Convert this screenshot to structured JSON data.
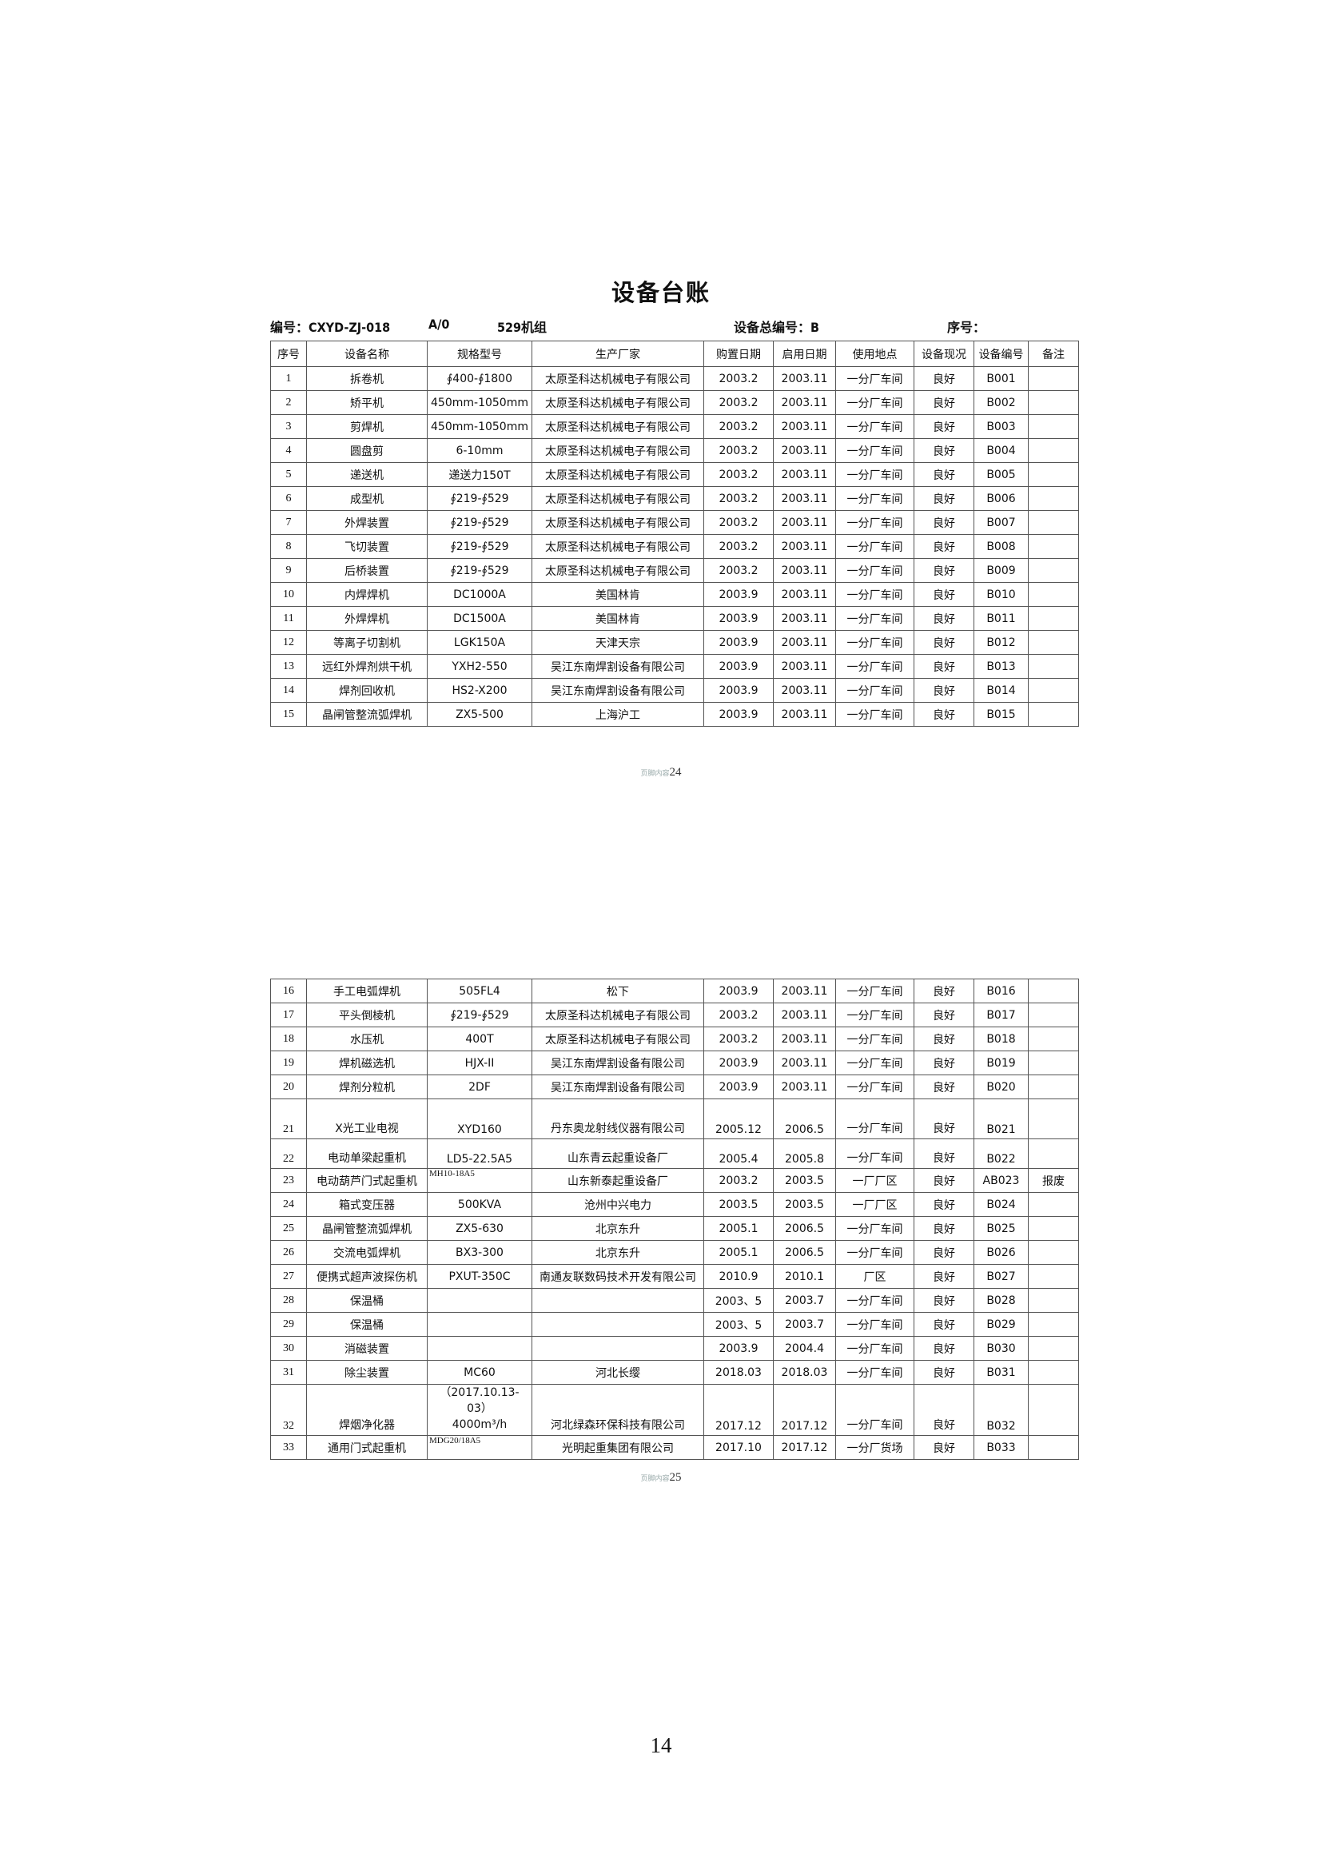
{
  "title": "设备台账",
  "meta": {
    "code": "编号：CXYD-ZJ-018",
    "rev": "A/0",
    "unit": "529机组",
    "total_code": "设备总编号：B",
    "serial": "序号："
  },
  "headers": [
    "序号",
    "设备名称",
    "规格型号",
    "生产厂家",
    "购置日期",
    "启用日期",
    "使用地点",
    "设备现况",
    "设备编号",
    "备注"
  ],
  "table1": [
    [
      "1",
      "拆卷机",
      "∮400-∮1800",
      "太原圣科达机械电子有限公司",
      "2003.2",
      "2003.11",
      "一分厂车间",
      "良好",
      "B001",
      ""
    ],
    [
      "2",
      "矫平机",
      "450mm-1050mm",
      "太原圣科达机械电子有限公司",
      "2003.2",
      "2003.11",
      "一分厂车间",
      "良好",
      "B002",
      ""
    ],
    [
      "3",
      "剪焊机",
      "450mm-1050mm",
      "太原圣科达机械电子有限公司",
      "2003.2",
      "2003.11",
      "一分厂车间",
      "良好",
      "B003",
      ""
    ],
    [
      "4",
      "圆盘剪",
      "6-10mm",
      "太原圣科达机械电子有限公司",
      "2003.2",
      "2003.11",
      "一分厂车间",
      "良好",
      "B004",
      ""
    ],
    [
      "5",
      "递送机",
      "递送力150T",
      "太原圣科达机械电子有限公司",
      "2003.2",
      "2003.11",
      "一分厂车间",
      "良好",
      "B005",
      ""
    ],
    [
      "6",
      "成型机",
      "∮219-∮529",
      "太原圣科达机械电子有限公司",
      "2003.2",
      "2003.11",
      "一分厂车间",
      "良好",
      "B006",
      ""
    ],
    [
      "7",
      "外焊装置",
      "∮219-∮529",
      "太原圣科达机械电子有限公司",
      "2003.2",
      "2003.11",
      "一分厂车间",
      "良好",
      "B007",
      ""
    ],
    [
      "8",
      "飞切装置",
      "∮219-∮529",
      "太原圣科达机械电子有限公司",
      "2003.2",
      "2003.11",
      "一分厂车间",
      "良好",
      "B008",
      ""
    ],
    [
      "9",
      "后桥装置",
      "∮219-∮529",
      "太原圣科达机械电子有限公司",
      "2003.2",
      "2003.11",
      "一分厂车间",
      "良好",
      "B009",
      ""
    ],
    [
      "10",
      "内焊焊机",
      "DC1000A",
      "美国林肯",
      "2003.9",
      "2003.11",
      "一分厂车间",
      "良好",
      "B010",
      ""
    ],
    [
      "11",
      "外焊焊机",
      "DC1500A",
      "美国林肯",
      "2003.9",
      "2003.11",
      "一分厂车间",
      "良好",
      "B011",
      ""
    ],
    [
      "12",
      "等离子切割机",
      "LGK150A",
      "天津天宗",
      "2003.9",
      "2003.11",
      "一分厂车间",
      "良好",
      "B012",
      ""
    ],
    [
      "13",
      "远红外焊剂烘干机",
      "YXH2-550",
      "吴江东南焊割设备有限公司",
      "2003.9",
      "2003.11",
      "一分厂车间",
      "良好",
      "B013",
      ""
    ],
    [
      "14",
      "焊剂回收机",
      "HS2-X200",
      "吴江东南焊割设备有限公司",
      "2003.9",
      "2003.11",
      "一分厂车间",
      "良好",
      "B014",
      ""
    ],
    [
      "15",
      "晶闸管整流弧焊机",
      "ZX5-500",
      "上海沪工",
      "2003.9",
      "2003.11",
      "一分厂车间",
      "良好",
      "B015",
      ""
    ]
  ],
  "table2": [
    [
      "16",
      "手工电弧焊机",
      "505FL4",
      "松下",
      "2003.9",
      "2003.11",
      "一分厂车间",
      "良好",
      "B016",
      ""
    ],
    [
      "17",
      "平头倒棱机",
      "∮219-∮529",
      "太原圣科达机械电子有限公司",
      "2003.2",
      "2003.11",
      "一分厂车间",
      "良好",
      "B017",
      ""
    ],
    [
      "18",
      "水压机",
      "400T",
      "太原圣科达机械电子有限公司",
      "2003.2",
      "2003.11",
      "一分厂车间",
      "良好",
      "B018",
      ""
    ],
    [
      "19",
      "焊机磁选机",
      "HJX-II",
      "吴江东南焊割设备有限公司",
      "2003.9",
      "2003.11",
      "一分厂车间",
      "良好",
      "B019",
      ""
    ],
    [
      "20",
      "焊剂分粒机",
      "2DF",
      "吴江东南焊割设备有限公司",
      "2003.9",
      "2003.11",
      "一分厂车间",
      "良好",
      "B020",
      ""
    ],
    [
      "21",
      "X光工业电视",
      "XYD160",
      "丹东奥龙射线仪器有限公司",
      "2005.12",
      "2006.5",
      "一分厂车间",
      "良好",
      "B021",
      ""
    ],
    [
      "22",
      "电动单梁起重机",
      "LD5-22.5A5",
      "山东青云起重设备厂",
      "2005.4",
      "2005.8",
      "一分厂车间",
      "良好",
      "B022",
      ""
    ],
    [
      "23",
      "电动葫芦门式起重机",
      "MH10-18A5",
      "山东新泰起重设备厂",
      "2003.2",
      "2003.5",
      "一厂厂区",
      "良好",
      "AB023",
      "报废"
    ],
    [
      "24",
      "箱式变压器",
      "500KVA",
      "沧州中兴电力",
      "2003.5",
      "2003.5",
      "一厂厂区",
      "良好",
      "B024",
      ""
    ],
    [
      "25",
      "晶闸管整流弧焊机",
      "ZX5-630",
      "北京东升",
      "2005.1",
      "2006.5",
      "一分厂车间",
      "良好",
      "B025",
      ""
    ],
    [
      "26",
      "交流电弧焊机",
      "BX3-300",
      "北京东升",
      "2005.1",
      "2006.5",
      "一分厂车间",
      "良好",
      "B026",
      ""
    ],
    [
      "27",
      "便携式超声波探伤机",
      "PXUT-350C",
      "南通友联数码技术开发有限公司",
      "2010.9",
      "2010.1",
      "厂区",
      "良好",
      "B027",
      ""
    ],
    [
      "28",
      "保温桶",
      "",
      "",
      "2003、5",
      "2003.7",
      "一分厂车间",
      "良好",
      "B028",
      ""
    ],
    [
      "29",
      "保温桶",
      "",
      "",
      "2003、5",
      "2003.7",
      "一分厂车间",
      "良好",
      "B029",
      ""
    ],
    [
      "30",
      "消磁装置",
      "",
      "",
      "2003.9",
      "2004.4",
      "一分厂车间",
      "良好",
      "B030",
      ""
    ],
    [
      "31",
      "除尘装置",
      "MC60",
      "河北长缨",
      "2018.03",
      "2018.03",
      "一分厂车间",
      "良好",
      "B031",
      ""
    ],
    [
      "32",
      "焊烟净化器",
      "（2017.10.13-03）\n4000m³/h",
      "河北绿森环保科技有限公司",
      "2017.12",
      "2017.12",
      "一分厂车间",
      "良好",
      "B032",
      ""
    ],
    [
      "33",
      "通用门式起重机",
      "MDG20/18A5",
      "光明起重集团有限公司",
      "2017.10",
      "2017.12",
      "一分厂货场",
      "良好",
      "B033",
      ""
    ]
  ],
  "footer1": {
    "prefix": "页脚内容",
    "num": "24"
  },
  "footer2": {
    "prefix": "页脚内容",
    "num": "25"
  },
  "page_number": "14"
}
